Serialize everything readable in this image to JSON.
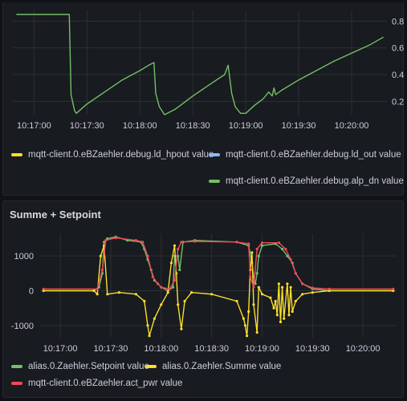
{
  "colors": {
    "yellow": "#fade2a",
    "blue": "#8ab8ff",
    "green": "#73bf69",
    "red": "#f2495c",
    "grid": "#2c2f35",
    "text": "#ccccdc"
  },
  "panels": [
    {
      "title": "",
      "legend": [
        {
          "label": "mqtt-client.0.eBZaehler.debug.ld_hpout value",
          "color": "yellow"
        },
        {
          "label": "mqtt-client.0.eBZaehler.debug.ld_out value",
          "color": "blue"
        },
        {
          "label": "mqtt-client.0.eBZaehler.debug.alp_dn value",
          "color": "green"
        }
      ]
    },
    {
      "title": "Summe + Setpoint",
      "legend": [
        {
          "label": "alias.0.Zaehler.Setpoint value",
          "color": "green"
        },
        {
          "label": "alias.0.Zaehler.Summe value",
          "color": "yellow"
        },
        {
          "label": "mqtt-client.0.eBZaehler.act_pwr value",
          "color": "red"
        }
      ]
    }
  ],
  "chart_data": [
    {
      "type": "line",
      "title": "",
      "x_ticks": [
        "10:17:00",
        "10:17:30",
        "10:18:00",
        "10:18:30",
        "10:19:00",
        "10:19:30",
        "10:20:00"
      ],
      "y_ticks": [
        0.2,
        0.4,
        0.6,
        0.8
      ],
      "y_axis_side": "right",
      "xlim": [
        "10:16:48",
        "10:20:20"
      ],
      "ylim": [
        0.1,
        0.88
      ],
      "grid": true,
      "legend_position": "bottom",
      "series": [
        {
          "name": "mqtt-client.0.eBZaehler.debug.alp_dn value",
          "color": "green",
          "points": [
            [
              "10:16:50",
              0.85
            ],
            [
              "10:17:20",
              0.85
            ],
            [
              "10:17:21",
              0.25
            ],
            [
              "10:17:23",
              0.13
            ],
            [
              "10:17:24",
              0.11
            ],
            [
              "10:17:30",
              0.18
            ],
            [
              "10:17:40",
              0.27
            ],
            [
              "10:17:50",
              0.36
            ],
            [
              "10:18:00",
              0.43
            ],
            [
              "10:18:05",
              0.47
            ],
            [
              "10:18:08",
              0.49
            ],
            [
              "10:18:09",
              0.26
            ],
            [
              "10:18:11",
              0.16
            ],
            [
              "10:18:14",
              0.1
            ],
            [
              "10:18:20",
              0.14
            ],
            [
              "10:18:30",
              0.24
            ],
            [
              "10:18:40",
              0.33
            ],
            [
              "10:18:48",
              0.4
            ],
            [
              "10:18:50",
              0.47
            ],
            [
              "10:18:52",
              0.26
            ],
            [
              "10:18:54",
              0.16
            ],
            [
              "10:18:57",
              0.11
            ],
            [
              "10:19:00",
              0.11
            ],
            [
              "10:19:05",
              0.17
            ],
            [
              "10:19:10",
              0.22
            ],
            [
              "10:19:13",
              0.27
            ],
            [
              "10:19:15",
              0.24
            ],
            [
              "10:19:16",
              0.3
            ],
            [
              "10:19:17",
              0.25
            ],
            [
              "10:19:20",
              0.28
            ],
            [
              "10:19:30",
              0.36
            ],
            [
              "10:19:40",
              0.43
            ],
            [
              "10:19:50",
              0.5
            ],
            [
              "10:20:00",
              0.56
            ],
            [
              "10:20:10",
              0.62
            ],
            [
              "10:20:18",
              0.68
            ]
          ]
        }
      ]
    },
    {
      "type": "line",
      "title": "Summe + Setpoint",
      "x_ticks": [
        "10:17:00",
        "10:17:30",
        "10:18:00",
        "10:18:30",
        "10:19:00",
        "10:19:30",
        "10:20:00"
      ],
      "y_ticks": [
        -1000,
        0,
        1000
      ],
      "y_axis_side": "left",
      "xlim": [
        "10:16:48",
        "10:20:20"
      ],
      "ylim": [
        -1350,
        1650
      ],
      "grid": true,
      "legend_position": "bottom",
      "series": [
        {
          "name": "alias.0.Zaehler.Setpoint value",
          "color": "green",
          "points": [
            [
              "10:16:50",
              0
            ],
            [
              "10:17:20",
              0
            ],
            [
              "10:17:23",
              100
            ],
            [
              "10:17:25",
              500
            ],
            [
              "10:17:26",
              1400
            ],
            [
              "10:17:28",
              1500
            ],
            [
              "10:17:33",
              1550
            ],
            [
              "10:17:40",
              1450
            ],
            [
              "10:17:48",
              1400
            ],
            [
              "10:17:50",
              1200
            ],
            [
              "10:17:52",
              900
            ],
            [
              "10:17:54",
              600
            ],
            [
              "10:17:56",
              300
            ],
            [
              "10:17:58",
              200
            ],
            [
              "10:18:00",
              100
            ],
            [
              "10:18:04",
              0
            ],
            [
              "10:18:07",
              100
            ],
            [
              "10:18:08",
              1000
            ],
            [
              "10:18:10",
              1000
            ],
            [
              "10:18:11",
              600
            ],
            [
              "10:18:13",
              1400
            ],
            [
              "10:18:20",
              1450
            ],
            [
              "10:18:45",
              1400
            ],
            [
              "10:18:52",
              1300
            ],
            [
              "10:18:54",
              800
            ],
            [
              "10:18:55",
              400
            ],
            [
              "10:18:56",
              200
            ],
            [
              "10:18:57",
              500
            ],
            [
              "10:18:58",
              1000
            ],
            [
              "10:19:00",
              1300
            ],
            [
              "10:19:08",
              1350
            ],
            [
              "10:19:12",
              1200
            ],
            [
              "10:19:15",
              1000
            ],
            [
              "10:19:18",
              800
            ],
            [
              "10:19:20",
              500
            ],
            [
              "10:19:24",
              200
            ],
            [
              "10:19:30",
              50
            ],
            [
              "10:19:40",
              0
            ],
            [
              "10:20:18",
              0
            ]
          ]
        },
        {
          "name": "alias.0.Zaehler.Summe value",
          "color": "yellow",
          "points": [
            [
              "10:16:50",
              0
            ],
            [
              "10:17:20",
              0
            ],
            [
              "10:17:22",
              -100
            ],
            [
              "10:17:24",
              1000
            ],
            [
              "10:17:26",
              1300
            ],
            [
              "10:17:28",
              -100
            ],
            [
              "10:17:35",
              -50
            ],
            [
              "10:17:45",
              -100
            ],
            [
              "10:17:50",
              -300
            ],
            [
              "10:17:52",
              -1000
            ],
            [
              "10:17:53",
              -1300
            ],
            [
              "10:17:56",
              -800
            ],
            [
              "10:18:00",
              -400
            ],
            [
              "10:18:04",
              -50
            ],
            [
              "10:18:06",
              800
            ],
            [
              "10:18:08",
              1300
            ],
            [
              "10:18:09",
              500
            ],
            [
              "10:18:10",
              -400
            ],
            [
              "10:18:12",
              -1100
            ],
            [
              "10:18:14",
              -300
            ],
            [
              "10:18:18",
              -50
            ],
            [
              "10:18:30",
              -100
            ],
            [
              "10:18:45",
              -300
            ],
            [
              "10:18:49",
              -800
            ],
            [
              "10:18:50",
              -1000
            ],
            [
              "10:18:51",
              -1300
            ],
            [
              "10:18:52",
              -600
            ],
            [
              "10:18:53",
              600
            ],
            [
              "10:18:54",
              1100
            ],
            [
              "10:18:55",
              -400
            ],
            [
              "10:18:57",
              -1200
            ],
            [
              "10:18:58",
              100
            ],
            [
              "10:19:00",
              -100
            ],
            [
              "10:19:05",
              -200
            ],
            [
              "10:19:07",
              -500
            ],
            [
              "10:19:08",
              -300
            ],
            [
              "10:19:09",
              -700
            ],
            [
              "10:19:10",
              200
            ],
            [
              "10:19:11",
              -900
            ],
            [
              "10:19:12",
              100
            ],
            [
              "10:19:13",
              -800
            ],
            [
              "10:19:15",
              200
            ],
            [
              "10:19:16",
              -700
            ],
            [
              "10:19:17",
              100
            ],
            [
              "10:19:18",
              -600
            ],
            [
              "10:19:20",
              -300
            ],
            [
              "10:19:24",
              -100
            ],
            [
              "10:19:30",
              -50
            ],
            [
              "10:19:40",
              0
            ],
            [
              "10:20:18",
              0
            ]
          ]
        },
        {
          "name": "mqtt-client.0.eBZaehler.act_pwr value",
          "color": "red",
          "points": [
            [
              "10:16:50",
              50
            ],
            [
              "10:17:22",
              50
            ],
            [
              "10:17:25",
              600
            ],
            [
              "10:17:27",
              1450
            ],
            [
              "10:17:33",
              1520
            ],
            [
              "10:17:45",
              1450
            ],
            [
              "10:17:49",
              1400
            ],
            [
              "10:17:52",
              1000
            ],
            [
              "10:17:55",
              400
            ],
            [
              "10:17:58",
              200
            ],
            [
              "10:18:00",
              100
            ],
            [
              "10:18:05",
              50
            ],
            [
              "10:18:08",
              300
            ],
            [
              "10:18:10",
              1200
            ],
            [
              "10:18:12",
              1400
            ],
            [
              "10:18:20",
              1420
            ],
            [
              "10:18:45",
              1400
            ],
            [
              "10:18:52",
              1350
            ],
            [
              "10:18:53",
              400
            ],
            [
              "10:18:55",
              100
            ],
            [
              "10:18:57",
              1200
            ],
            [
              "10:19:00",
              1380
            ],
            [
              "10:19:10",
              1380
            ],
            [
              "10:19:14",
              1200
            ],
            [
              "10:19:17",
              900
            ],
            [
              "10:19:20",
              500
            ],
            [
              "10:19:24",
              200
            ],
            [
              "10:19:30",
              80
            ],
            [
              "10:19:40",
              50
            ],
            [
              "10:20:18",
              50
            ]
          ]
        }
      ]
    }
  ]
}
